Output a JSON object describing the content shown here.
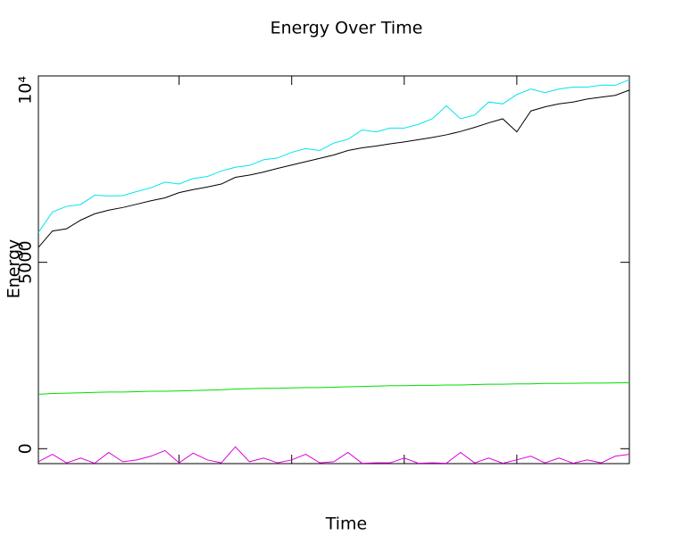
{
  "chart_data": {
    "type": "line",
    "title": "Energy Over Time",
    "xlabel": "Time",
    "ylabel": "Energy",
    "x": [
      -5,
      -2.5,
      0,
      2.5,
      5,
      7.5,
      10,
      12.5,
      15,
      17.5,
      20,
      22.5,
      25,
      27.5,
      30,
      32.5,
      35,
      37.5,
      40,
      42.5,
      45,
      47.5,
      50,
      52.5,
      55,
      57.5,
      60,
      62.5,
      65,
      67.5,
      70,
      72.5,
      75,
      77.5,
      80,
      82.5,
      85,
      87.5,
      90,
      92.5,
      95,
      97.5,
      100
    ],
    "xlim": [
      -5,
      100
    ],
    "xticks": [
      20,
      40,
      60,
      80
    ],
    "ylim": [
      -400,
      10000
    ],
    "yticks": [
      0,
      5000,
      {
        "value": 10000,
        "label": "10⁴"
      }
    ],
    "series": [
      {
        "color": "#00e5ee",
        "values": [
          5800,
          6350,
          6500,
          6550,
          6800,
          6780,
          6790,
          6900,
          7000,
          7150,
          7100,
          7250,
          7300,
          7450,
          7550,
          7600,
          7750,
          7800,
          7950,
          8050,
          8000,
          8200,
          8300,
          8550,
          8500,
          8600,
          8600,
          8700,
          8850,
          9200,
          8850,
          8950,
          9300,
          9250,
          9500,
          9650,
          9550,
          9650,
          9700,
          9700,
          9750,
          9750,
          9900
        ]
      },
      {
        "color": "#000000",
        "values": [
          5400,
          5840,
          5900,
          6130,
          6300,
          6400,
          6470,
          6560,
          6650,
          6730,
          6870,
          6950,
          7020,
          7100,
          7280,
          7340,
          7420,
          7520,
          7610,
          7700,
          7790,
          7880,
          8000,
          8070,
          8120,
          8180,
          8230,
          8290,
          8350,
          8420,
          8510,
          8620,
          8740,
          8850,
          8500,
          9060,
          9170,
          9250,
          9300,
          9380,
          9430,
          9480,
          9620
        ]
      },
      {
        "color": "#00dd00",
        "values": [
          1460,
          1480,
          1490,
          1500,
          1510,
          1520,
          1520,
          1530,
          1540,
          1540,
          1550,
          1560,
          1570,
          1580,
          1600,
          1610,
          1620,
          1620,
          1630,
          1640,
          1640,
          1650,
          1660,
          1670,
          1680,
          1690,
          1690,
          1700,
          1700,
          1710,
          1710,
          1720,
          1730,
          1730,
          1740,
          1740,
          1750,
          1750,
          1755,
          1760,
          1760,
          1765,
          1770
        ]
      },
      {
        "color": "#dd00dd",
        "values": [
          -350,
          -150,
          -380,
          -250,
          -390,
          -100,
          -350,
          -300,
          -200,
          -50,
          -380,
          -120,
          -300,
          -380,
          50,
          -350,
          -250,
          -380,
          -300,
          -150,
          -380,
          -350,
          -100,
          -390,
          -380,
          -380,
          -250,
          -390,
          -380,
          -390,
          -100,
          -380,
          -250,
          -390,
          -300,
          -200,
          -380,
          -250,
          -390,
          -300,
          -380,
          -200,
          -150
        ]
      }
    ]
  }
}
